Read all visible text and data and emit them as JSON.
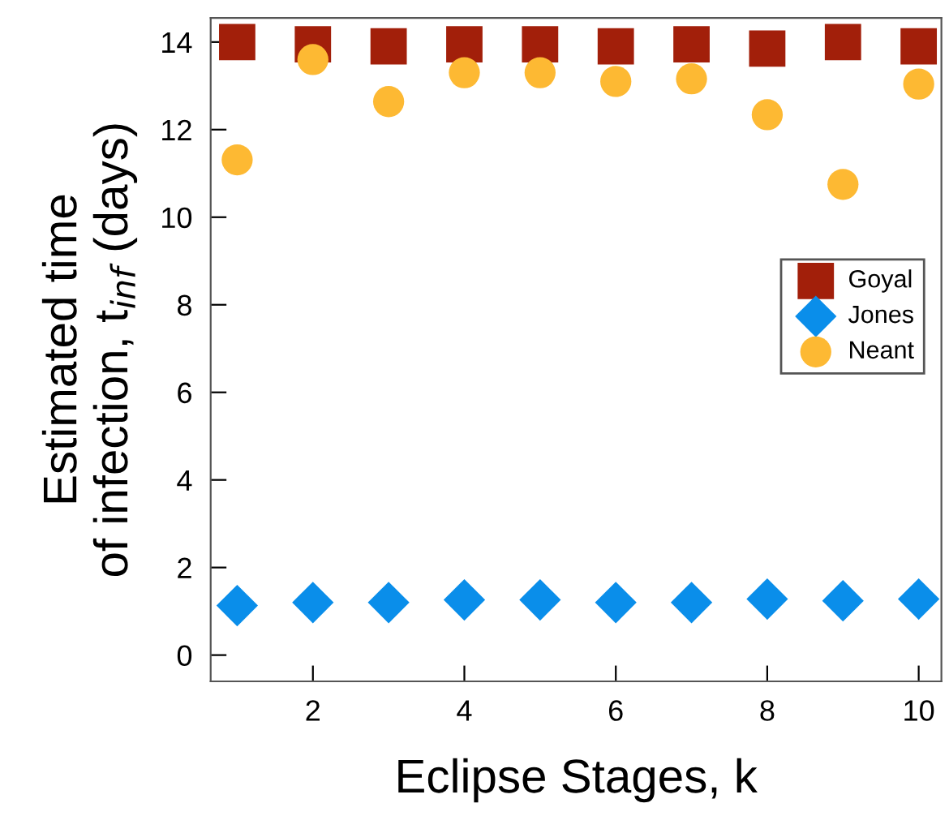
{
  "chart_data": {
    "type": "scatter",
    "xlabel": "Eclipse Stages, k",
    "ylabel": "Estimated time\nof infection, t$_{inf}$ (days)",
    "x": [
      1,
      2,
      3,
      4,
      5,
      6,
      7,
      8,
      9,
      10
    ],
    "xlim": [
      0.65,
      10.3
    ],
    "xticks": [
      2,
      4,
      6,
      8,
      10
    ],
    "ylim": [
      -0.6,
      14.55
    ],
    "yticks": [
      0,
      2,
      4,
      6,
      8,
      10,
      12,
      14
    ],
    "grid": false,
    "legend": "center right",
    "series": [
      {
        "name": "Goyal",
        "color": "#a21f0a",
        "marker": "square",
        "values": [
          14.0,
          13.95,
          13.9,
          13.95,
          13.95,
          13.9,
          13.95,
          13.85,
          14.0,
          13.9
        ]
      },
      {
        "name": "Jones",
        "color": "#0a8eea",
        "marker": "diamond",
        "values": [
          1.13,
          1.2,
          1.2,
          1.26,
          1.26,
          1.2,
          1.2,
          1.28,
          1.24,
          1.28
        ]
      },
      {
        "name": "Neant",
        "color": "#fdb933",
        "marker": "circle",
        "values": [
          11.31,
          13.6,
          12.64,
          13.3,
          13.3,
          13.1,
          13.16,
          12.34,
          10.75,
          13.04
        ]
      }
    ]
  }
}
